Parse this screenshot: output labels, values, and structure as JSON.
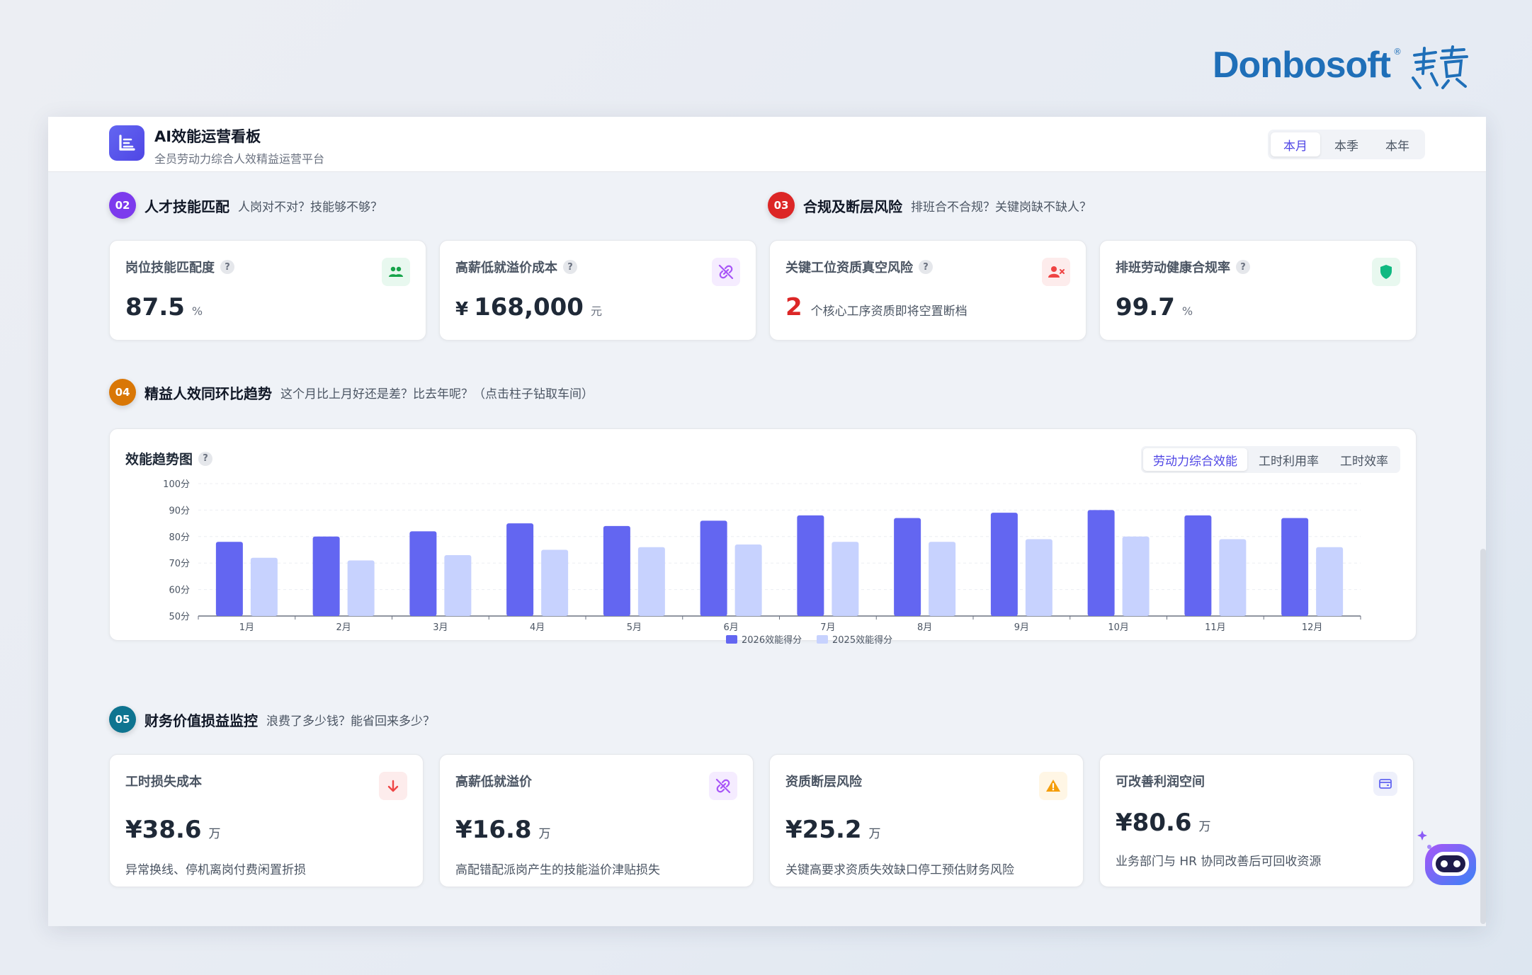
{
  "brand": {
    "name": "Donbosoft",
    "reg_mark": "®",
    "chinese_mark": "东宝"
  },
  "header": {
    "title": "AI效能运营看板",
    "subtitle": "全员劳动力综合人效精益运营平台",
    "periods": [
      "本月",
      "本季",
      "本年"
    ],
    "active_period": "本月"
  },
  "section_talent": {
    "num": "02",
    "title": "人才技能匹配",
    "desc": "人岗对不对？技能够不够？",
    "color": "#7c3aed",
    "cards": [
      {
        "label": "岗位技能匹配度",
        "help": "?",
        "value": "87.5",
        "unit": "%",
        "icon": "users-icon",
        "icon_color": "#16a34a",
        "icon_bg": "#e8f8ef"
      },
      {
        "label": "高薪低就溢价成本",
        "help": "?",
        "prefix": "¥",
        "value": "168,000",
        "unit": "元",
        "icon": "broken-link-icon",
        "icon_color": "#a855f7",
        "icon_bg": "#f5ecff"
      }
    ]
  },
  "section_compliance": {
    "num": "03",
    "title": "合规及断层风险",
    "desc": "排班合不合规？关键岗缺不缺人？",
    "color": "#dc2626",
    "cards": [
      {
        "label": "关键工位资质真空风险",
        "help": "?",
        "value": "2",
        "note": "个核心工序资质即将空置断档",
        "icon": "user-remove-icon",
        "icon_color": "#ef4444",
        "icon_bg": "#fdecec"
      },
      {
        "label": "排班劳动健康合规率",
        "help": "?",
        "value": "99.7",
        "unit": "%",
        "icon": "shield-icon",
        "icon_color": "#10b981",
        "icon_bg": "#e8f8ef"
      }
    ]
  },
  "section_trend": {
    "num": "04",
    "title": "精益人效同环比趋势",
    "desc": "这个月比上月好还是差？比去年呢？（点击柱子钻取车间）",
    "color": "#d97706",
    "chart_title": "效能趋势图",
    "help": "?",
    "metric_tabs": [
      "劳动力综合效能",
      "工时利用率",
      "工时效率"
    ],
    "active_metric": "劳动力综合效能"
  },
  "chart_data": {
    "type": "bar",
    "categories": [
      "1月",
      "2月",
      "3月",
      "4月",
      "5月",
      "6月",
      "7月",
      "8月",
      "9月",
      "10月",
      "11月",
      "12月"
    ],
    "series": [
      {
        "name": "2026效能得分",
        "color": "#6366f1",
        "values": [
          78,
          80,
          82,
          85,
          84,
          86,
          88,
          87,
          89,
          90,
          88,
          87
        ]
      },
      {
        "name": "2025效能得分",
        "color": "#c7d2fe",
        "values": [
          72,
          71,
          73,
          75,
          76,
          77,
          78,
          78,
          79,
          80,
          79,
          76
        ]
      }
    ],
    "ylim": [
      50,
      100
    ],
    "yticks": [
      "50分",
      "60分",
      "70分",
      "80分",
      "90分",
      "100分"
    ],
    "grid": true,
    "legend": "bottom-center"
  },
  "section_finance": {
    "num": "05",
    "title": "财务价值损益监控",
    "desc": "浪费了多少钱？能省回来多少？",
    "color": "#0e7490",
    "cards": [
      {
        "label": "工时损失成本",
        "value": "¥38.6",
        "unit": "万",
        "desc": "异常换线、停机离岗付费闲置折损",
        "icon": "arrow-down-icon",
        "icon_color": "#ef4444",
        "icon_bg": "#fdecec"
      },
      {
        "label": "高薪低就溢价",
        "value": "¥16.8",
        "unit": "万",
        "desc": "高配错配派岗产生的技能溢价津贴损失",
        "icon": "broken-link-icon",
        "icon_color": "#a855f7",
        "icon_bg": "#f5ecff"
      },
      {
        "label": "资质断层风险",
        "value": "¥25.2",
        "unit": "万",
        "desc": "关键高要求资质失效缺口停工预估财务风险",
        "icon": "warning-icon",
        "icon_color": "#f59e0b",
        "icon_bg": "#fff6e5"
      },
      {
        "label": "可改善利润空间",
        "value": "¥80.6",
        "unit": "万",
        "desc": "业务部门与 HR 协同改善后可回收资源",
        "icon": "wallet-icon",
        "icon_color": "#6366f1",
        "icon_bg": "#eef0fb"
      }
    ]
  }
}
